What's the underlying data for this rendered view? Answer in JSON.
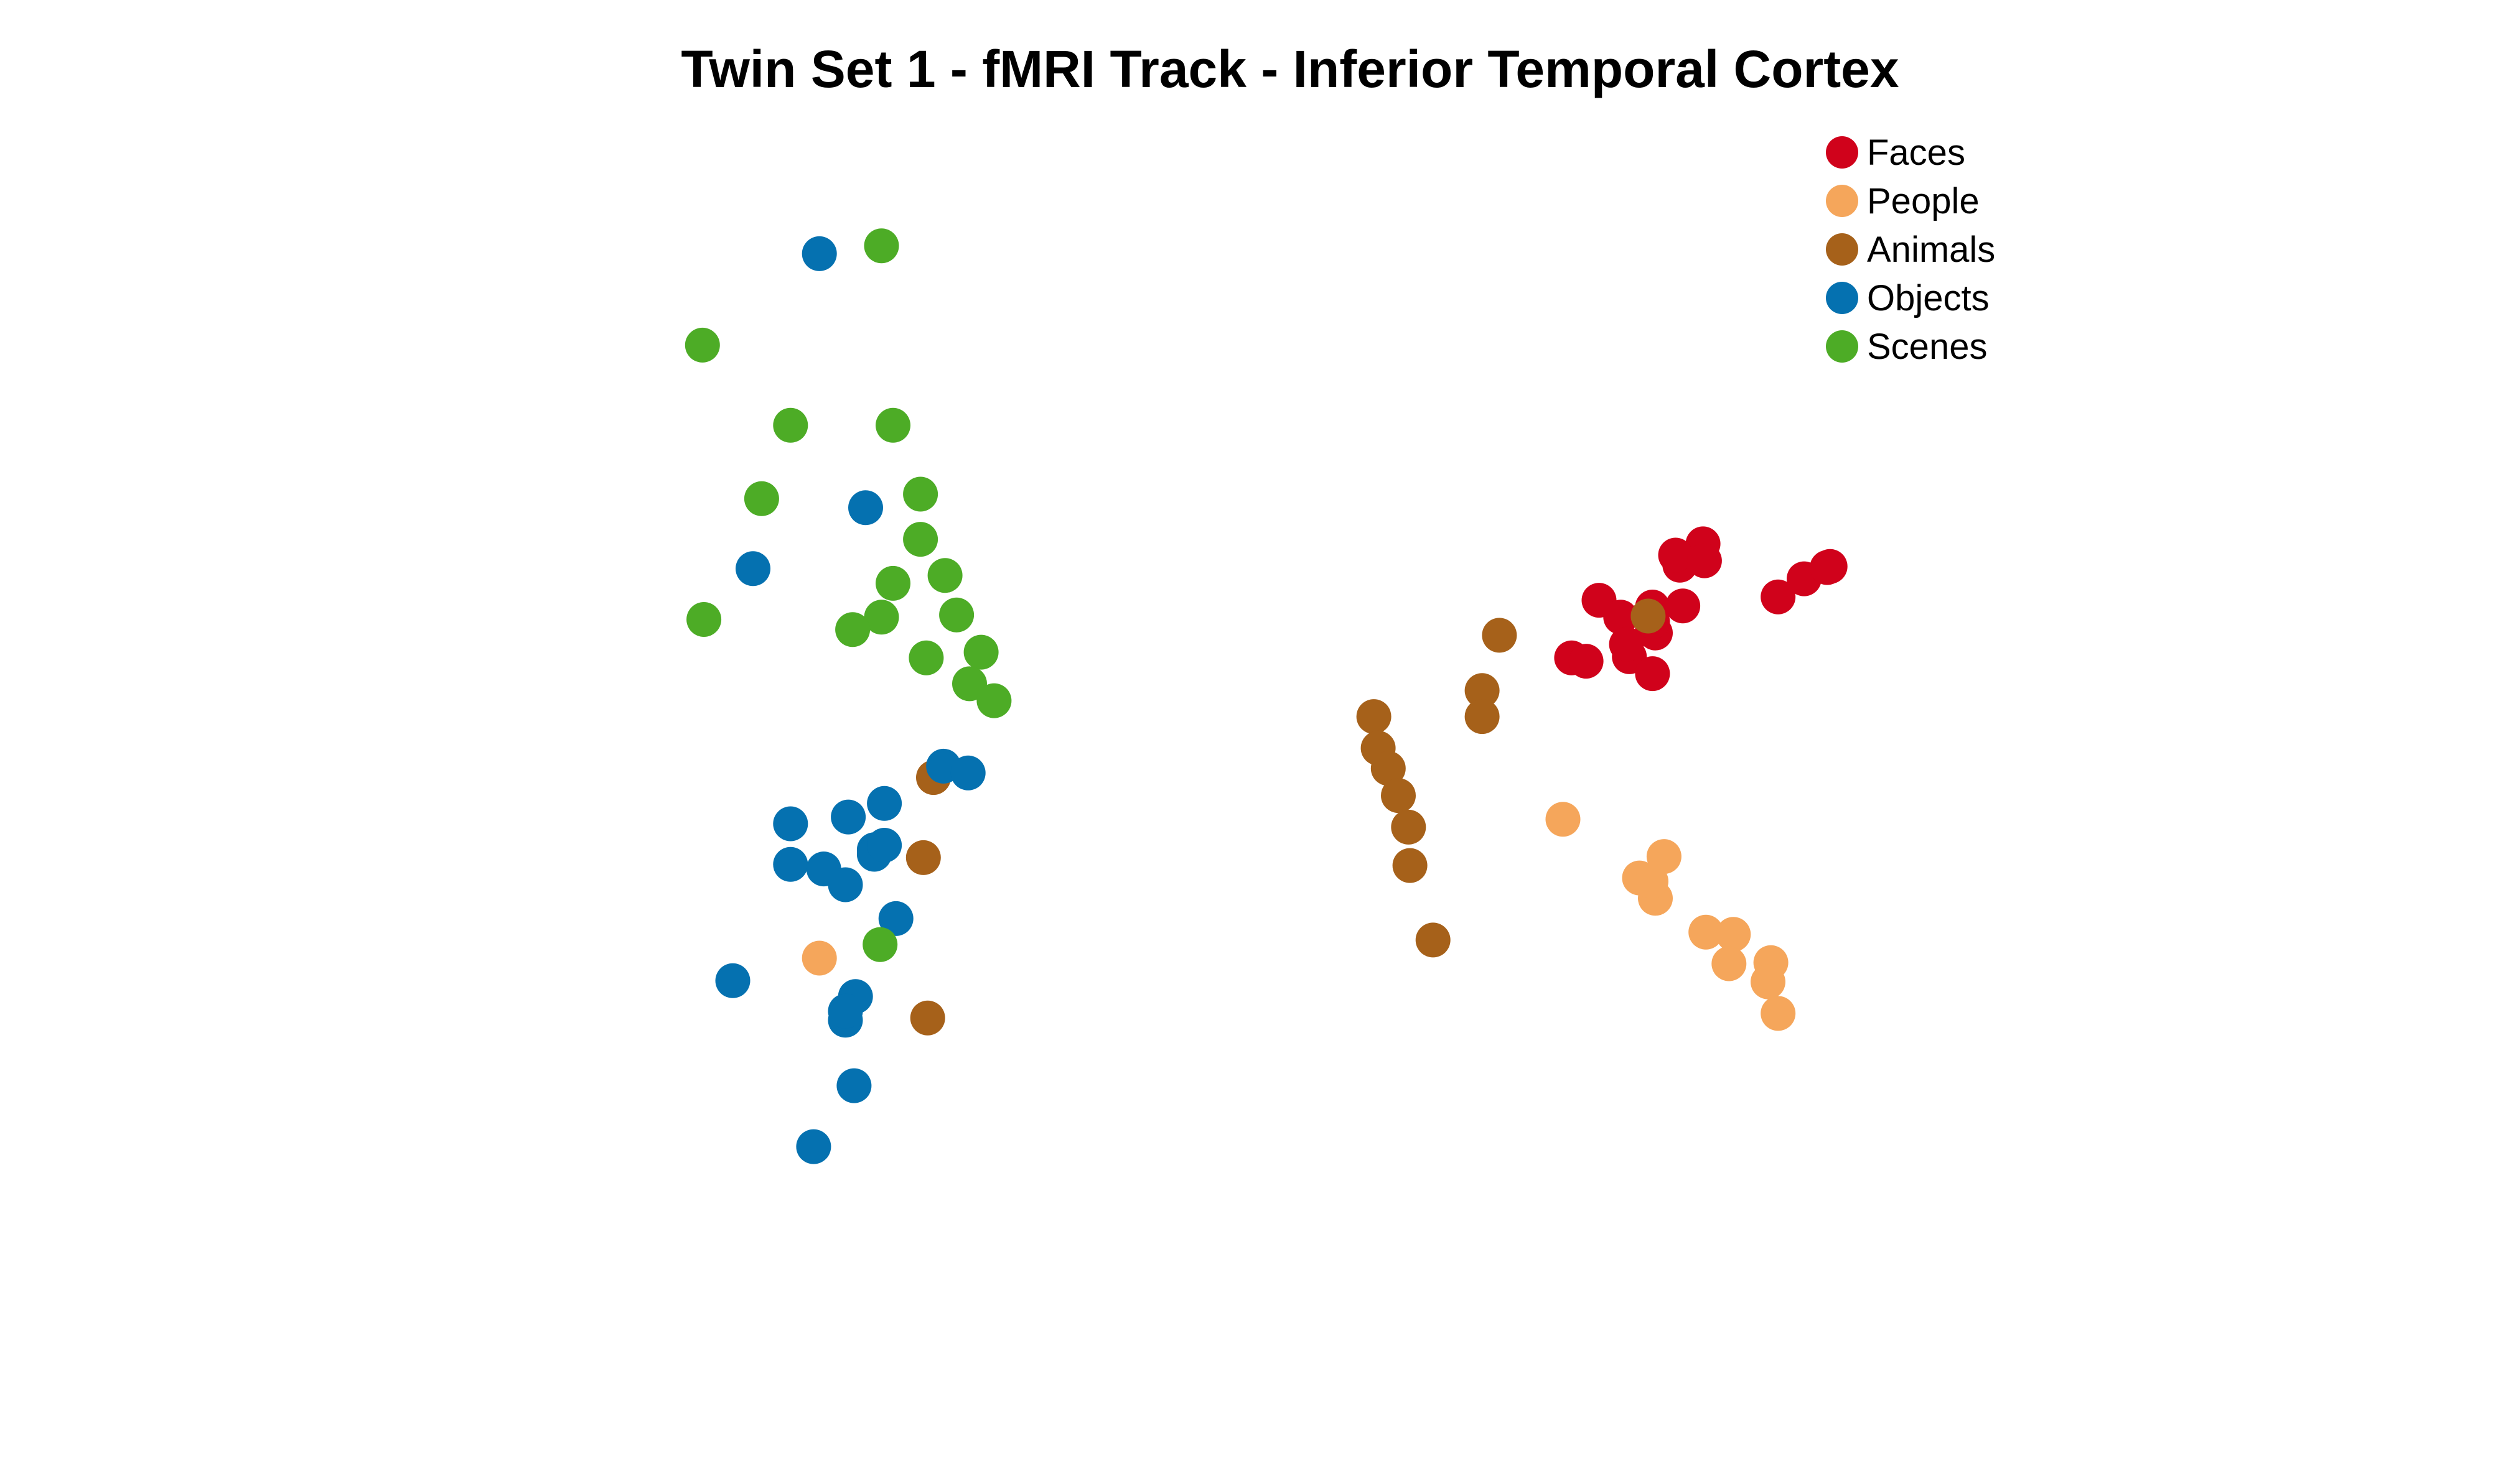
{
  "chart_data": {
    "type": "scatter",
    "title": "Twin Set 1 - fMRI Track - Inferior Temporal Cortex",
    "xlabel": "",
    "ylabel": "",
    "axes_visible": false,
    "grid": false,
    "legend_position": "top-right",
    "xlim": [
      0,
      1000
    ],
    "ylim": [
      0,
      1000
    ],
    "series": [
      {
        "name": "Faces",
        "color": "#D0021B",
        "points": [
          [
            871,
            636
          ],
          [
            853,
            625
          ],
          [
            835,
            609
          ],
          [
            869,
            635
          ],
          [
            769,
            601
          ],
          [
            692,
            555
          ],
          [
            702,
            552
          ],
          [
            711,
            606
          ],
          [
            726,
            591
          ],
          [
            748,
            600
          ],
          [
            748,
            580
          ],
          [
            732,
            556
          ],
          [
            750,
            577
          ],
          [
            730,
            567
          ],
          [
            748,
            541
          ],
          [
            767,
            637
          ],
          [
            783,
            656
          ],
          [
            764,
            646
          ],
          [
            748,
            587
          ],
          [
            784,
            641
          ]
        ]
      },
      {
        "name": "People",
        "color": "#F5A65B",
        "points": [
          [
            686,
            412
          ],
          [
            739,
            360
          ],
          [
            750,
            342
          ],
          [
            747,
            357
          ],
          [
            756,
            379
          ],
          [
            785,
            312
          ],
          [
            804,
            310
          ],
          [
            801,
            284
          ],
          [
            830,
            285
          ],
          [
            828,
            268
          ],
          [
            835,
            240
          ],
          [
            171,
            289
          ]
        ]
      },
      {
        "name": "Animals",
        "color": "#A6611A",
        "points": [
          [
            745,
            592
          ],
          [
            642,
            575
          ],
          [
            630,
            526
          ],
          [
            630,
            503
          ],
          [
            555,
            503
          ],
          [
            558,
            475
          ],
          [
            565,
            457
          ],
          [
            572,
            433
          ],
          [
            579,
            405
          ],
          [
            580,
            371
          ],
          [
            596,
            305
          ],
          [
            246,
            236
          ],
          [
            243,
            378
          ],
          [
            250,
            449
          ]
        ]
      },
      {
        "name": "Objects",
        "color": "#0571B0",
        "points": [
          [
            171,
            913
          ],
          [
            203,
            688
          ],
          [
            125,
            634
          ],
          [
            257,
            459
          ],
          [
            274,
            453
          ],
          [
            216,
            426
          ],
          [
            151,
            408
          ],
          [
            191,
            414
          ],
          [
            209,
            385
          ],
          [
            151,
            372
          ],
          [
            174,
            368
          ],
          [
            209,
            381
          ],
          [
            189,
            354
          ],
          [
            111,
            269
          ],
          [
            224,
            324
          ],
          [
            196,
            255
          ],
          [
            189,
            234
          ],
          [
            195,
            176
          ],
          [
            167,
            122
          ],
          [
            216,
            389
          ],
          [
            189,
            242
          ]
        ]
      },
      {
        "name": "Scenes",
        "color": "#4DAC26",
        "points": [
          [
            214,
            920
          ],
          [
            90,
            832
          ],
          [
            151,
            761
          ],
          [
            222,
            761
          ],
          [
            131,
            696
          ],
          [
            241,
            700
          ],
          [
            241,
            660
          ],
          [
            222,
            621
          ],
          [
            258,
            628
          ],
          [
            214,
            591
          ],
          [
            91,
            589
          ],
          [
            194,
            580
          ],
          [
            266,
            593
          ],
          [
            245,
            555
          ],
          [
            283,
            560
          ],
          [
            275,
            532
          ],
          [
            292,
            517
          ],
          [
            213,
            301
          ]
        ]
      }
    ]
  }
}
